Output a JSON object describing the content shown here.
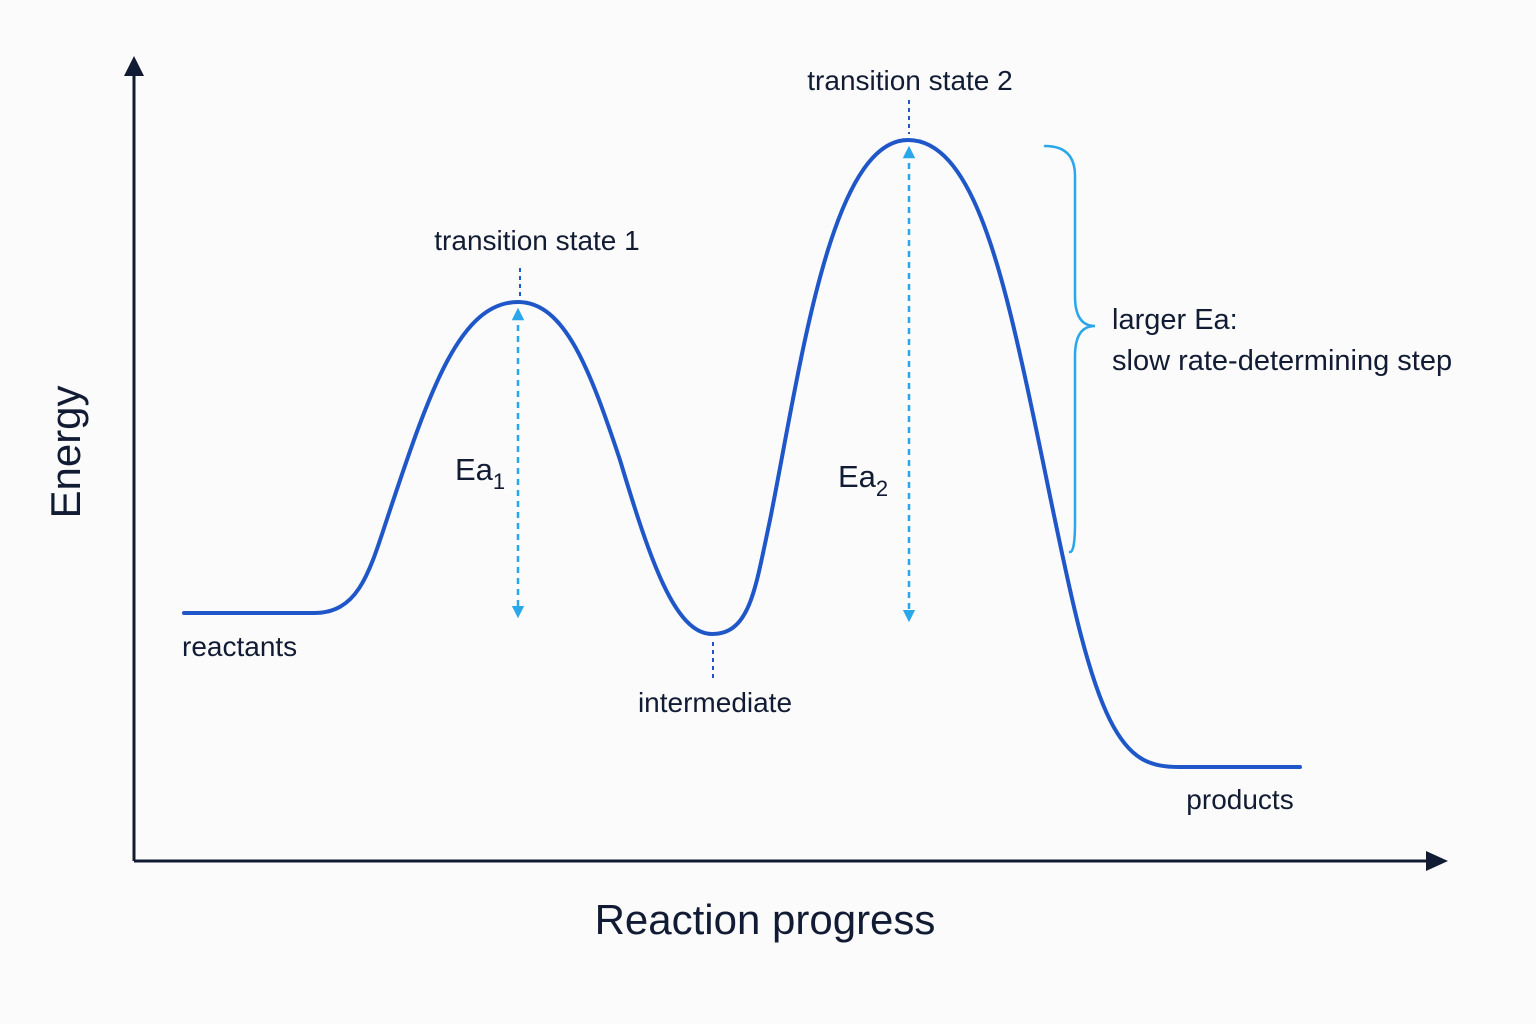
{
  "diagram": {
    "y_axis_label": "Energy",
    "x_axis_label": "Reaction progress",
    "labels": {
      "reactants": "reactants",
      "intermediate": "intermediate",
      "products": "products",
      "transition_state_1": "transition state 1",
      "transition_state_2": "transition state 2"
    },
    "activation_energy_1": {
      "base": "Ea",
      "subscript": "1"
    },
    "activation_energy_2": {
      "base": "Ea",
      "subscript": "2"
    },
    "annotation": {
      "line1": "larger Ea:",
      "line2": "slow rate-determining step"
    },
    "colors": {
      "curve": "#1f57c9",
      "activation_arrows": "#2aa6ea",
      "bracket": "#2aa6ea",
      "axes": "#111b33",
      "text": "#111b33"
    }
  }
}
